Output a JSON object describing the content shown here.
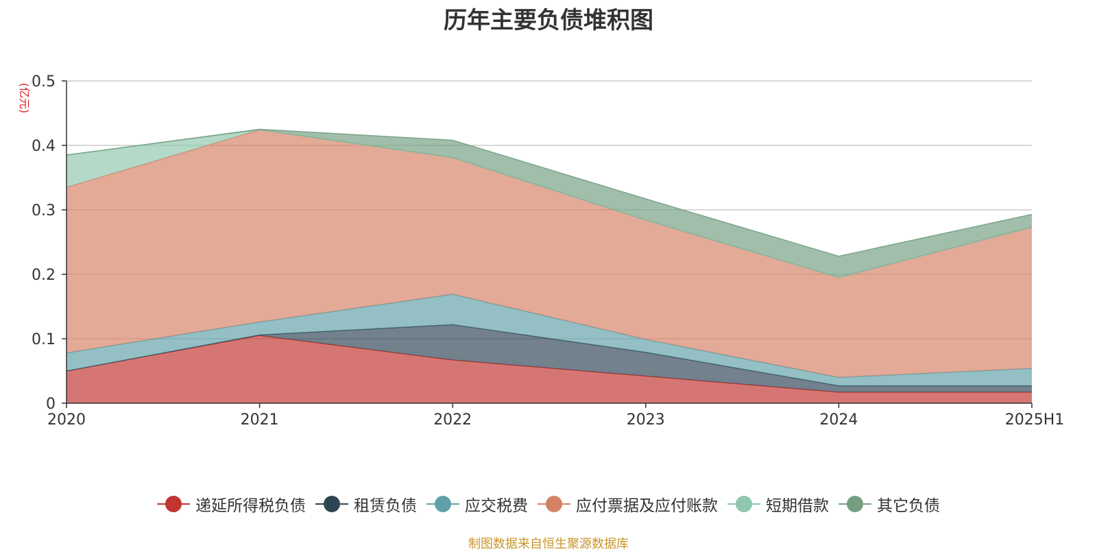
{
  "chart_data": {
    "type": "area",
    "stacked": true,
    "title": "历年主要负债堆积图",
    "ylabel": "(亿元)",
    "xlabel": "",
    "categories": [
      "2020",
      "2021",
      "2022",
      "2023",
      "2024",
      "2025H1"
    ],
    "ylim": [
      0,
      0.5
    ],
    "yticks": [
      "0",
      "0.1",
      "0.2",
      "0.3",
      "0.4",
      "0.5"
    ],
    "grid": true,
    "legend_position": "bottom",
    "series": [
      {
        "name": "递延所得税负债",
        "color": "#c23531",
        "values": [
          0.05,
          0.105,
          0.067,
          0.042,
          0.017,
          0.017
        ]
      },
      {
        "name": "租赁负债",
        "color": "#2f4554",
        "values": [
          0.0,
          0.001,
          0.055,
          0.037,
          0.01,
          0.01
        ]
      },
      {
        "name": "应交税费",
        "color": "#61a0a8",
        "values": [
          0.028,
          0.02,
          0.047,
          0.02,
          0.013,
          0.027
        ]
      },
      {
        "name": "应付票据及应付账款",
        "color": "#d48265",
        "values": [
          0.257,
          0.298,
          0.212,
          0.185,
          0.155,
          0.219
        ]
      },
      {
        "name": "短期借款",
        "color": "#91c7ae",
        "values": [
          0.05,
          0.0,
          0.0,
          0.0,
          0.0,
          0.0
        ]
      },
      {
        "name": "其它负债",
        "color": "#749f83",
        "values": [
          0.0,
          0.001,
          0.027,
          0.033,
          0.033,
          0.02
        ]
      }
    ]
  },
  "source_note": "制图数据来自恒生聚源数据库"
}
